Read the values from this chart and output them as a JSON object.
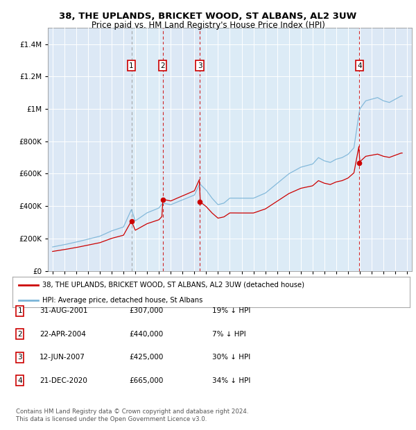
{
  "title1": "38, THE UPLANDS, BRICKET WOOD, ST ALBANS, AL2 3UW",
  "title2": "Price paid vs. HM Land Registry's House Price Index (HPI)",
  "plot_bg": "#dce8f5",
  "hpi_color": "#7ab4d8",
  "sale_color": "#cc0000",
  "shade_color": "#ccddf0",
  "ylim": [
    0,
    1500000
  ],
  "yticks": [
    0,
    200000,
    400000,
    600000,
    800000,
    1000000,
    1200000,
    1400000
  ],
  "ytick_labels": [
    "£0",
    "£200K",
    "£400K",
    "£600K",
    "£800K",
    "£1M",
    "£1.2M",
    "£1.4M"
  ],
  "sales": [
    {
      "date_num": 2001.67,
      "price": 307000,
      "label": "1"
    },
    {
      "date_num": 2004.31,
      "price": 440000,
      "label": "2"
    },
    {
      "date_num": 2007.45,
      "price": 425000,
      "label": "3"
    },
    {
      "date_num": 2020.97,
      "price": 665000,
      "label": "4"
    }
  ],
  "sale_table": [
    {
      "num": "1",
      "date": "31-AUG-2001",
      "price": "£307,000",
      "note": "19% ↓ HPI"
    },
    {
      "num": "2",
      "date": "22-APR-2004",
      "price": "£440,000",
      "note": "7% ↓ HPI"
    },
    {
      "num": "3",
      "date": "12-JUN-2007",
      "price": "£425,000",
      "note": "30% ↓ HPI"
    },
    {
      "num": "4",
      "date": "21-DEC-2020",
      "price": "£665,000",
      "note": "34% ↓ HPI"
    }
  ],
  "legend_entry1": "38, THE UPLANDS, BRICKET WOOD, ST ALBANS, AL2 3UW (detached house)",
  "legend_entry2": "HPI: Average price, detached house, St Albans",
  "footer": "Contains HM Land Registry data © Crown copyright and database right 2024.\nThis data is licensed under the Open Government Licence v3.0.",
  "xlim_left": 1994.6,
  "xlim_right": 2025.4
}
